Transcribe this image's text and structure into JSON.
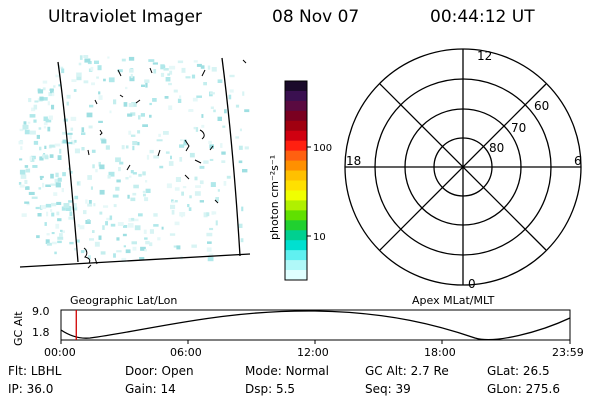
{
  "header": {
    "title": "Ultraviolet Imager",
    "date": "08 Nov 07",
    "time": "00:44:12 UT"
  },
  "colorbar": {
    "unit_label": "photon cm⁻²s⁻¹",
    "ticks": [
      "100",
      "10"
    ],
    "colors": [
      "#1a0a2a",
      "#3a1050",
      "#5a0a40",
      "#7a0020",
      "#a00010",
      "#d00010",
      "#ff2010",
      "#ff6010",
      "#ff9000",
      "#ffc000",
      "#ffe000",
      "#f0ff00",
      "#b0f000",
      "#60e000",
      "#20d030",
      "#00d090",
      "#00e0d0",
      "#60f0f0",
      "#b0f8f8",
      "#e0ffff"
    ]
  },
  "polar": {
    "mlt_labels": {
      "top": "12",
      "left": "18",
      "right": "6",
      "bottom": "0"
    },
    "lat_labels": [
      "60",
      "70",
      "80"
    ]
  },
  "map": {
    "left_label": "Geographic Lat/Lon",
    "right_label": "Apex MLat/MLT"
  },
  "altitude_plot": {
    "ylabel": "GC Alt",
    "y_ticks": [
      "9.0",
      "1.8"
    ],
    "x_ticks": [
      "00:00",
      "06:00",
      "12:00",
      "18:00",
      "23:59"
    ],
    "current_time_fraction": 0.03
  },
  "footer": {
    "row1": [
      {
        "key": "Flt:",
        "value": "LBHL"
      },
      {
        "key": "Door:",
        "value": "Open"
      },
      {
        "key": "Mode:",
        "value": "Normal"
      },
      {
        "key": "GC Alt:",
        "value": "2.7 Re"
      },
      {
        "key": "GLat:",
        "value": "26.5"
      }
    ],
    "row2": [
      {
        "key": "IP:",
        "value": "36.0"
      },
      {
        "key": "Gain:",
        "value": "14"
      },
      {
        "key": "Dsp:",
        "value": "5.5"
      },
      {
        "key": "Seq:",
        "value": "39"
      },
      {
        "key": "GLon:",
        "value": "275.6"
      }
    ]
  }
}
